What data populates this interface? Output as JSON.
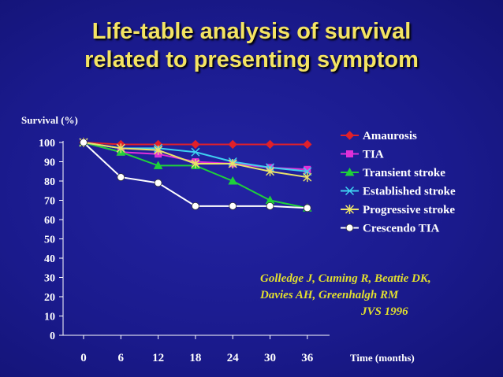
{
  "slide": {
    "title_line1": "Life-table analysis of survival",
    "title_line2": "related to presenting symptom",
    "background_color": "#1b1b8f",
    "title_color": "#f4e463",
    "citation_color": "#e2df2e"
  },
  "citation": {
    "line1": "Golledge J, Cuming R, Beattie DK,",
    "line2": "Davies AH, Greenhalgh RM",
    "journal": "JVS 1996"
  },
  "chart_data": {
    "type": "line",
    "title": "Life-table analysis of survival related to presenting symptom",
    "xlabel": "Time (months)",
    "ylabel": "Survival (%)",
    "x": [
      0,
      6,
      12,
      18,
      24,
      30,
      36
    ],
    "x_tick_labels": [
      "0",
      "6",
      "12",
      "18",
      "24",
      "30",
      "36"
    ],
    "y_ticks": [
      0,
      10,
      20,
      30,
      40,
      50,
      60,
      70,
      80,
      90,
      100
    ],
    "y_tick_labels": [
      "0",
      "10",
      "20",
      "30",
      "40",
      "50",
      "60",
      "70",
      "80",
      "90",
      "100"
    ],
    "ylim": [
      0,
      100
    ],
    "grid": false,
    "legend_position": "right",
    "series": [
      {
        "name": "Amaurosis",
        "marker": "diamond",
        "color": "#e0202a",
        "values": [
          100,
          99,
          99,
          99,
          99,
          99,
          99
        ]
      },
      {
        "name": "TIA",
        "marker": "square",
        "color": "#e030d8",
        "values": [
          100,
          95,
          94,
          90,
          89,
          87,
          86
        ]
      },
      {
        "name": "Transient stroke",
        "marker": "triangle",
        "color": "#1fd13a",
        "values": [
          100,
          95,
          88,
          88,
          80,
          70,
          66
        ]
      },
      {
        "name": "Established stroke",
        "marker": "x",
        "color": "#3fd0f0",
        "values": [
          100,
          97,
          97,
          95,
          90,
          87,
          85
        ]
      },
      {
        "name": "Progressive stroke",
        "marker": "star",
        "color": "#eae26a",
        "values": [
          100,
          97,
          96,
          89,
          89,
          85,
          82
        ]
      },
      {
        "name": "Crescendo TIA",
        "marker": "circle",
        "color": "#ffffff",
        "values": [
          100,
          82,
          79,
          67,
          67,
          67,
          66
        ]
      }
    ]
  }
}
